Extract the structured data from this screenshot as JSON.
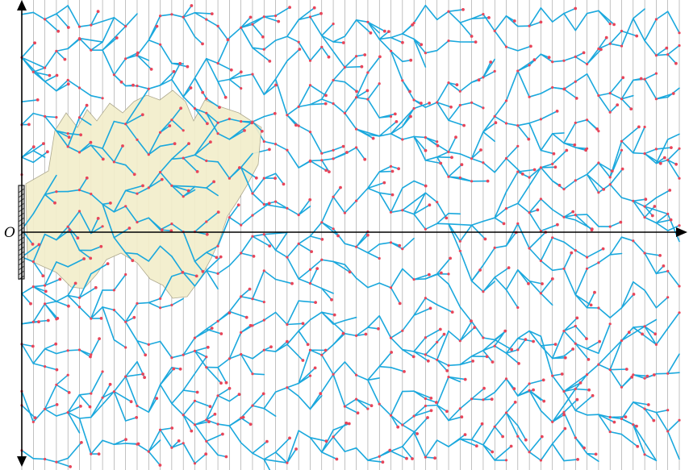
{
  "figure": {
    "origin_label": "O",
    "colors": {
      "edge": "#1aa8dd",
      "node": "#e8455a",
      "region": "#f3eecb",
      "lines": "#9a9a9a",
      "axis": "#000000"
    },
    "vertical_line_count": 58
  }
}
